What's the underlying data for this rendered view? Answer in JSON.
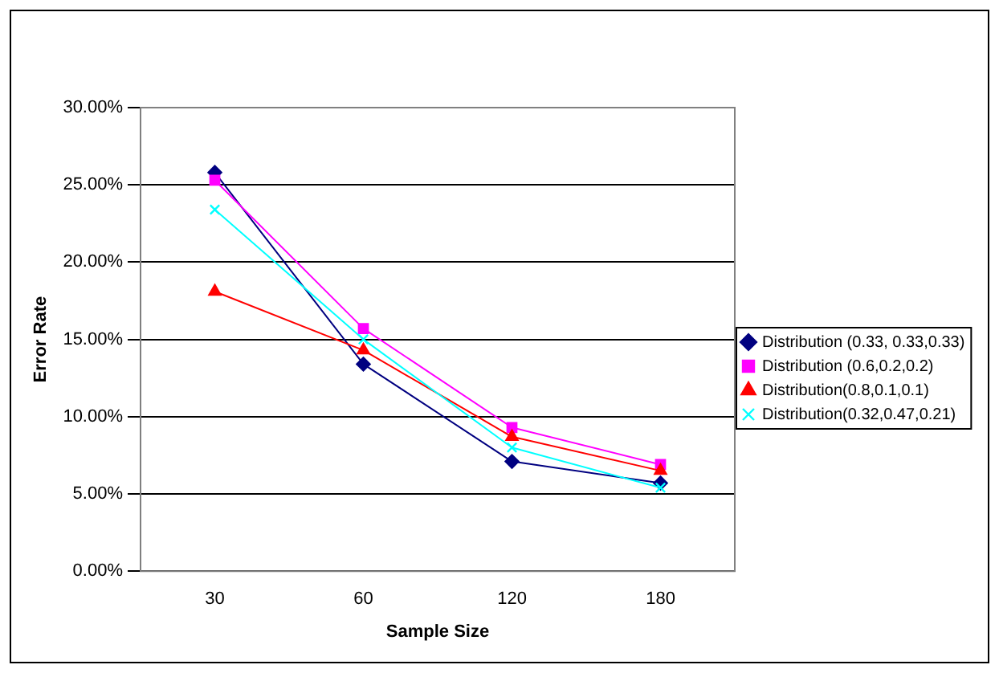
{
  "chart_data": {
    "type": "line",
    "xlabel": "Sample Size",
    "ylabel": "Error Rate",
    "categories": [
      "30",
      "60",
      "120",
      "180"
    ],
    "ylim": [
      0,
      0.3
    ],
    "yticks": [
      {
        "value": 0,
        "label": "0.00%"
      },
      {
        "value": 0.05,
        "label": "5.00%"
      },
      {
        "value": 0.1,
        "label": "10.00%"
      },
      {
        "value": 0.15,
        "label": "15.00%"
      },
      {
        "value": 0.2,
        "label": "20.00%"
      },
      {
        "value": 0.25,
        "label": "25.00%"
      },
      {
        "value": 0.3,
        "label": "30.00%"
      }
    ],
    "grid": "y",
    "legend": "right",
    "line_style": "solid",
    "series": [
      {
        "name": "Distribution (0.33, 0.33,0.33)",
        "color": "#000080",
        "marker": "diamond",
        "values": [
          0.258,
          0.134,
          0.071,
          0.057
        ]
      },
      {
        "name": "Distribution (0.6,0.2,0.2)",
        "color": "#ff00ff",
        "marker": "square",
        "values": [
          0.253,
          0.157,
          0.093,
          0.069
        ]
      },
      {
        "name": "Distribution(0.8,0.1,0.1)",
        "color": "#ff0000",
        "marker": "triangle",
        "values": [
          0.181,
          0.143,
          0.087,
          0.065
        ]
      },
      {
        "name": "Distribution(0.32,0.47,0.21)",
        "color": "#00ffff",
        "marker": "cross",
        "values": [
          0.234,
          0.15,
          0.08,
          0.054
        ]
      }
    ]
  }
}
